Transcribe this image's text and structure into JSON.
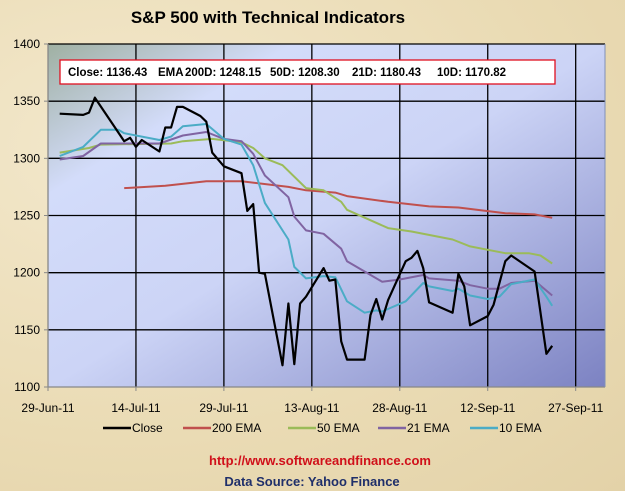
{
  "chart_data": {
    "type": "line",
    "title": "S&P 500 with Technical Indicators",
    "x_unit": "days since 29-Jun-11",
    "xlim": [
      0,
      95
    ],
    "ylim": [
      1100,
      1400
    ],
    "grid": true,
    "legend_placement": "bottom",
    "x_ticks": [
      {
        "value": 0,
        "label": "29-Jun-11"
      },
      {
        "value": 15,
        "label": "14-Jul-11"
      },
      {
        "value": 30,
        "label": "29-Jul-11"
      },
      {
        "value": 45,
        "label": "13-Aug-11"
      },
      {
        "value": 60,
        "label": "28-Aug-11"
      },
      {
        "value": 75,
        "label": "12-Sep-11"
      },
      {
        "value": 90,
        "label": "27-Sep-11"
      }
    ],
    "y_ticks": [
      1100,
      1150,
      1200,
      1250,
      1300,
      1350,
      1400
    ],
    "info_box": {
      "close": "Close: 1136.43",
      "ema": "EMA",
      "d200": "200D: 1248.15",
      "d50": "50D: 1208.30",
      "d21": "21D: 1180.43",
      "d10": "10D: 1170.82"
    },
    "series": [
      {
        "name": "Close",
        "color": "#000000",
        "width": 2.2,
        "x": [
          2,
          6,
          7,
          8,
          13,
          14,
          15,
          16,
          19,
          20,
          21,
          22,
          23,
          26,
          27,
          28,
          30,
          33,
          34,
          35,
          36,
          37,
          40,
          41,
          42,
          43,
          44,
          47,
          48,
          49,
          50,
          51,
          54,
          55,
          56,
          57,
          58,
          61,
          62,
          63,
          64,
          65,
          69,
          70,
          71,
          72,
          75,
          76,
          78,
          79,
          83,
          85,
          86
        ],
        "y": [
          1339,
          1338,
          1340,
          1353,
          1315,
          1318,
          1310,
          1316,
          1306,
          1327,
          1327,
          1345,
          1345,
          1337,
          1332,
          1305,
          1293,
          1287,
          1254,
          1260,
          1200,
          1199,
          1119,
          1173,
          1120,
          1173,
          1179,
          1204,
          1193,
          1194,
          1140,
          1124,
          1124,
          1163,
          1177,
          1159,
          1176,
          1210,
          1213,
          1219,
          1204,
          1174,
          1165,
          1199,
          1188,
          1154,
          1162,
          1172,
          1210,
          1215,
          1201,
          1129,
          1136
        ]
      },
      {
        "name": "200 EMA",
        "color": "#c0504d",
        "width": 2,
        "x": [
          13,
          20,
          27,
          33,
          41,
          44,
          49,
          51,
          58,
          65,
          70,
          78,
          83,
          86
        ],
        "y": [
          1274,
          1276,
          1280,
          1280,
          1275,
          1272,
          1270,
          1267,
          1262,
          1258,
          1257,
          1252,
          1251,
          1248
        ]
      },
      {
        "name": "50 EMA",
        "color": "#9bbb59",
        "width": 2,
        "x": [
          2,
          7,
          9,
          21,
          23,
          28,
          33,
          35,
          37,
          40,
          44,
          47,
          50,
          51,
          58,
          62,
          69,
          72,
          78,
          82,
          84,
          86
        ],
        "y": [
          1305,
          1309,
          1312,
          1313,
          1315,
          1317,
          1314,
          1309,
          1300,
          1294,
          1274,
          1272,
          1262,
          1255,
          1239,
          1236,
          1229,
          1223,
          1217,
          1217,
          1215,
          1208
        ]
      },
      {
        "name": "21 EMA",
        "color": "#8064a2",
        "width": 2,
        "x": [
          2,
          6,
          9,
          19,
          23,
          27,
          30,
          33,
          35,
          37,
          41,
          42,
          44,
          47,
          50,
          51,
          54,
          57,
          60,
          64,
          65,
          70,
          72,
          75,
          77,
          79,
          83,
          86
        ],
        "y": [
          1299,
          1302,
          1313,
          1313,
          1320,
          1323,
          1317,
          1315,
          1304,
          1285,
          1266,
          1249,
          1237,
          1234,
          1221,
          1210,
          1201,
          1192,
          1194,
          1198,
          1195,
          1193,
          1189,
          1186,
          1186,
          1191,
          1193,
          1180
        ]
      },
      {
        "name": "10 EMA",
        "color": "#4bacc6",
        "width": 2,
        "x": [
          2,
          6,
          9,
          12,
          13,
          19,
          21,
          23,
          27,
          30,
          33,
          35,
          37,
          41,
          42,
          44,
          47,
          49,
          51,
          54,
          56,
          57,
          61,
          64,
          65,
          69,
          70,
          72,
          75,
          77,
          79,
          83,
          85,
          86
        ],
        "y": [
          1302,
          1310,
          1325,
          1325,
          1322,
          1316,
          1319,
          1328,
          1330,
          1317,
          1312,
          1294,
          1261,
          1229,
          1205,
          1195,
          1197,
          1196,
          1175,
          1165,
          1167,
          1166,
          1175,
          1191,
          1188,
          1184,
          1186,
          1180,
          1177,
          1179,
          1190,
          1194,
          1179,
          1171
        ]
      }
    ],
    "footer": {
      "url": "http://www.softwareandfinance.com",
      "source": "Data Source: Yahoo Finance"
    }
  }
}
